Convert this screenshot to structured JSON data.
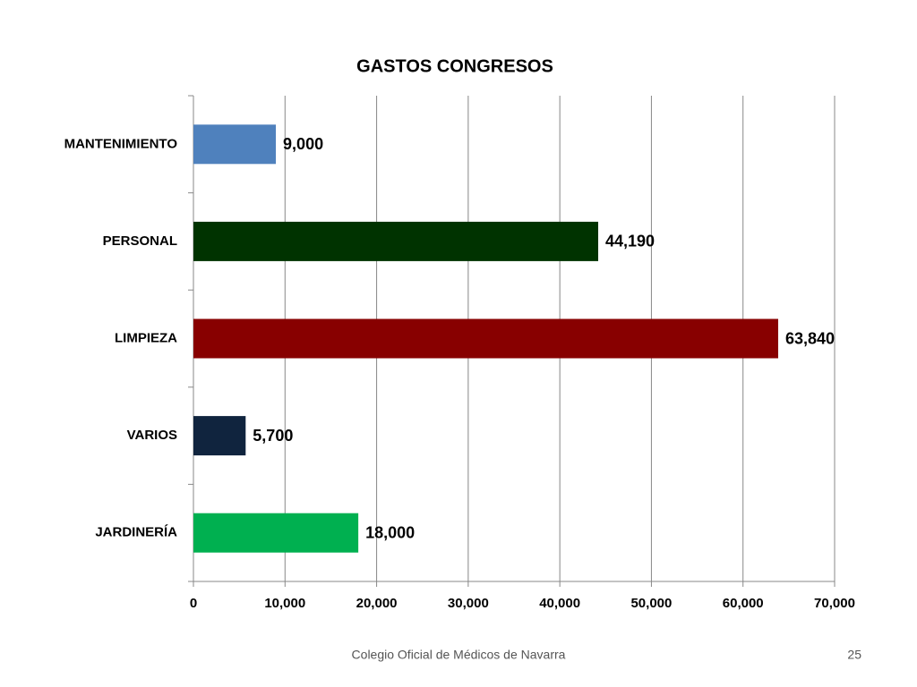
{
  "chart_data": {
    "type": "hbar",
    "title": "GASTOS CONGRESOS",
    "categories": [
      "MANTENIMIENTO",
      "PERSONAL",
      "LIMPIEZA",
      "VARIOS",
      "JARDINERÍA"
    ],
    "values": [
      9000,
      44190,
      63840,
      5700,
      18000
    ],
    "value_labels": [
      "9,000",
      "44,190",
      "63,840",
      "5,700",
      "18,000"
    ],
    "colors": [
      "#4f81bd",
      "#003300",
      "#880000",
      "#10243e",
      "#00b050"
    ],
    "xlim": [
      0,
      70000
    ],
    "xticks": [
      0,
      {
        "value": 10000,
        "label": "10,000"
      },
      {
        "value": 20000,
        "label": "20,000"
      },
      {
        "value": 30000,
        "label": "30,000"
      },
      {
        "value": 40000,
        "label": "40,000"
      },
      {
        "value": 50000,
        "label": "50,000"
      },
      {
        "value": 60000,
        "label": "60,000"
      },
      {
        "value": 70000,
        "label": "70,000"
      }
    ],
    "grid": true
  },
  "footer": {
    "text": "Colegio Oficial de Médicos de Navarra",
    "page": 25
  }
}
